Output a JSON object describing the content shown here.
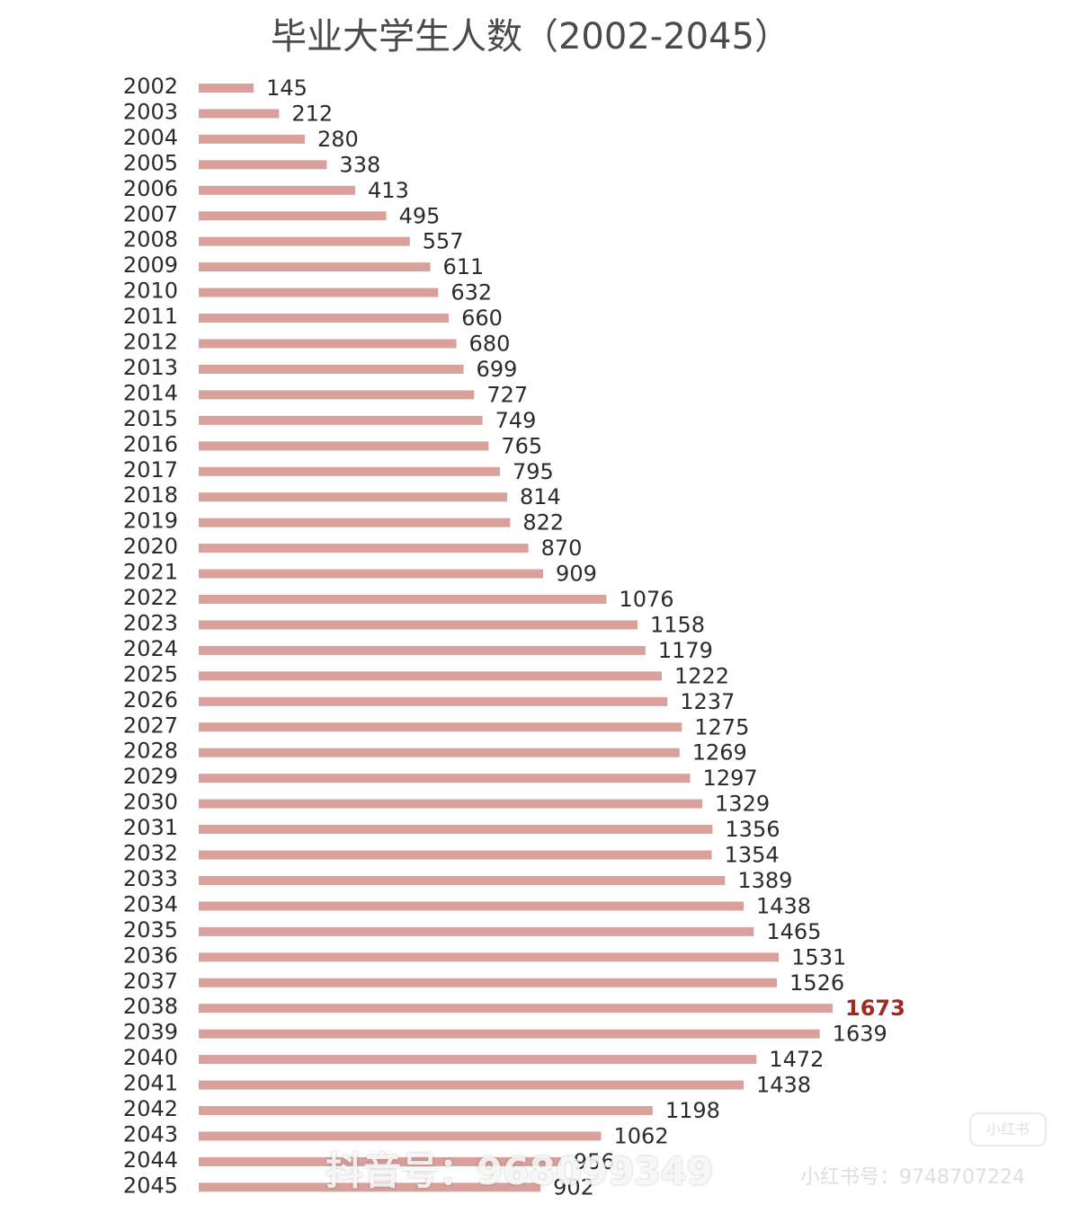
{
  "chart_data": {
    "type": "bar",
    "orientation": "horizontal",
    "title": "毕业大学生人数（2002-2045）",
    "categories": [
      "2002",
      "2003",
      "2004",
      "2005",
      "2006",
      "2007",
      "2008",
      "2009",
      "2010",
      "2011",
      "2012",
      "2013",
      "2014",
      "2015",
      "2016",
      "2017",
      "2018",
      "2019",
      "2020",
      "2021",
      "2022",
      "2023",
      "2024",
      "2025",
      "2026",
      "2027",
      "2028",
      "2029",
      "2030",
      "2031",
      "2032",
      "2033",
      "2034",
      "2035",
      "2036",
      "2037",
      "2038",
      "2039",
      "2040",
      "2041",
      "2042",
      "2043",
      "2044",
      "2045"
    ],
    "values": [
      145,
      212,
      280,
      338,
      413,
      495,
      557,
      611,
      632,
      660,
      680,
      699,
      727,
      749,
      765,
      795,
      814,
      822,
      870,
      909,
      1076,
      1158,
      1179,
      1222,
      1237,
      1275,
      1269,
      1297,
      1329,
      1356,
      1354,
      1389,
      1438,
      1465,
      1531,
      1526,
      1673,
      1639,
      1472,
      1438,
      1198,
      1062,
      956,
      902
    ],
    "highlight": "2038",
    "xlim": [
      0,
      1673
    ],
    "grid": false,
    "legend": "none",
    "colors": {
      "bar": "#d9a09c",
      "label": "#2b2b2b",
      "highlight_label": "#9e2a22",
      "title": "#4a4a4a"
    }
  },
  "watermarks": {
    "douyin": "抖音号：968099349",
    "xiaohongshu": "小红书号：9748707224",
    "xiaohongshu_logo": "小红书"
  }
}
